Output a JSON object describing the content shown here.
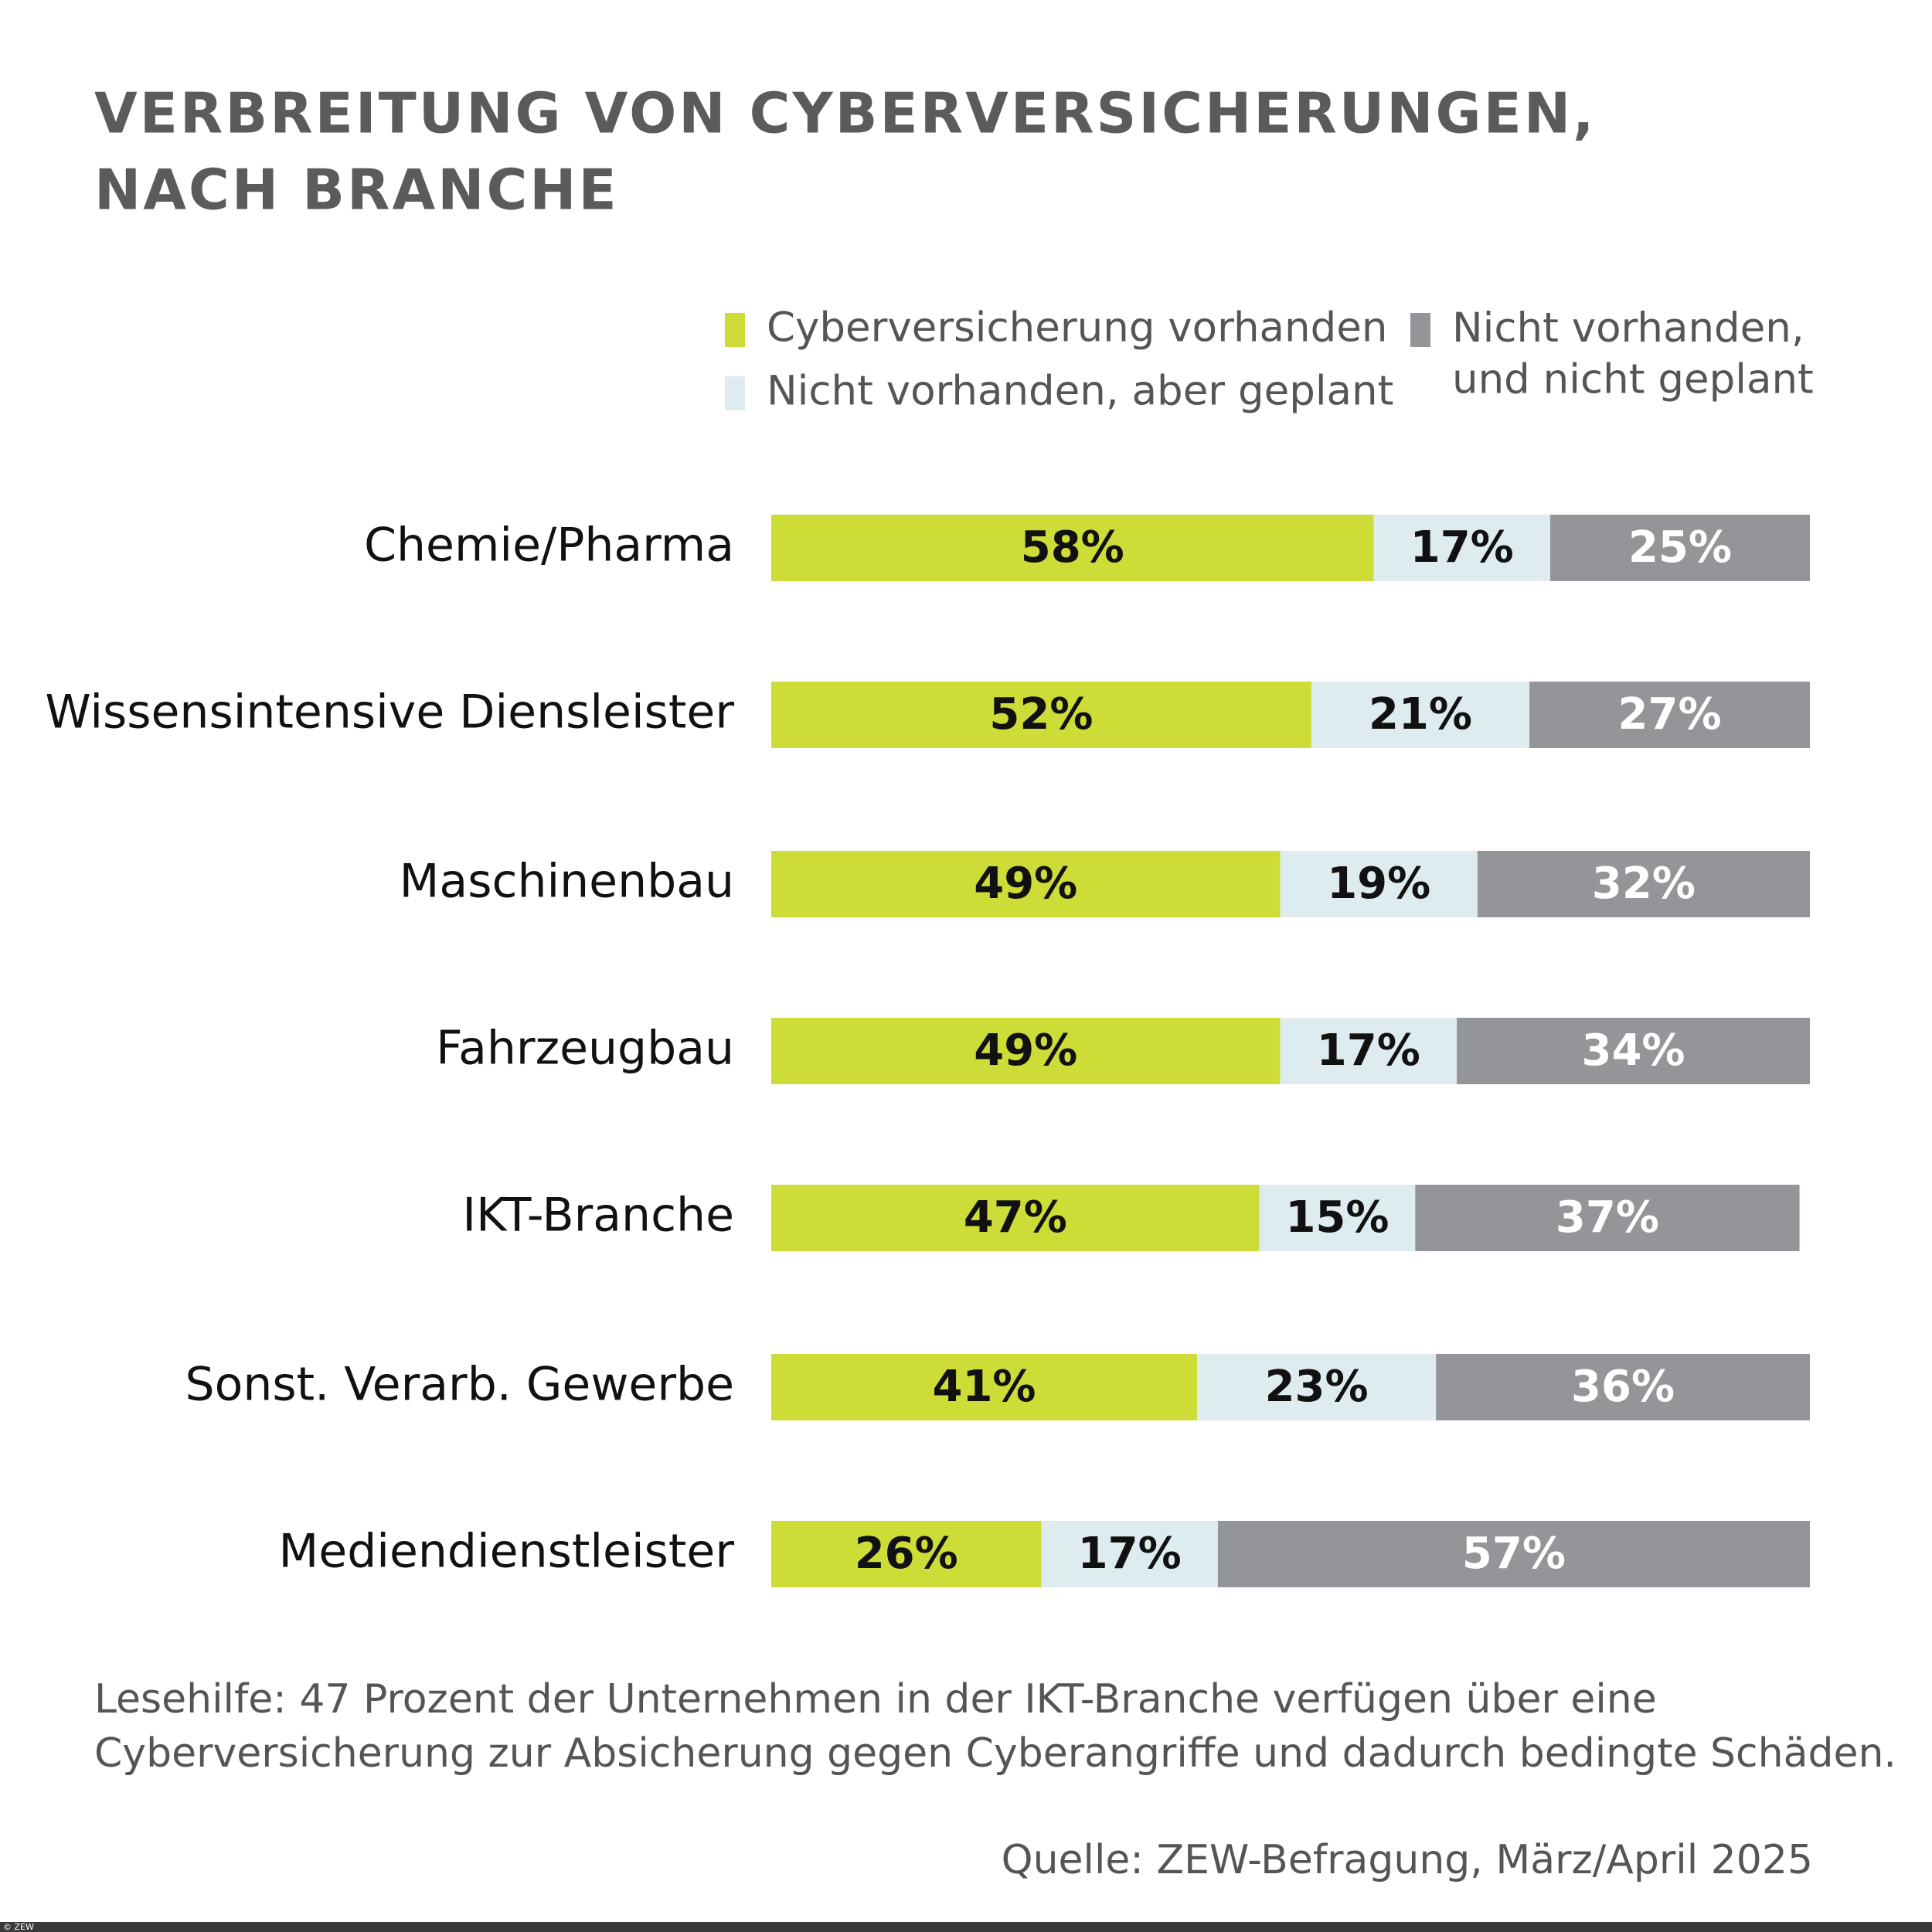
{
  "chart_data": {
    "type": "stacked_bar",
    "title": [
      "VERBREITUNG VON CYBERVERSICHERUNGEN,",
      "NACH BRANCHE"
    ],
    "categories": [
      "Chemie/Pharma",
      "Wissensintensive Diensleister",
      "Maschinenbau",
      "Fahrzeugbau",
      "IKT-Branche",
      "Sonst. Verarb. Gewerbe",
      "Mediendienstleister"
    ],
    "series": [
      {
        "name": "Cyberversicherung vorhanden",
        "color": "#cedc38",
        "label_color": "#111111",
        "values": [
          58,
          52,
          49,
          49,
          47,
          41,
          26
        ],
        "value_labels": [
          "58%",
          "52%",
          "49%",
          "49%",
          "47%",
          "41%",
          "26%"
        ]
      },
      {
        "name": "Nicht vorhanden, aber geplant",
        "color": "#deecef",
        "label_color": "#111111",
        "values": [
          17,
          21,
          19,
          17,
          15,
          23,
          17
        ],
        "value_labels": [
          "17%",
          "21%",
          "19%",
          "17%",
          "15%",
          "23%",
          "17%"
        ]
      },
      {
        "name": "Nicht vorhanden,\nund nicht geplant",
        "color": "#939598",
        "label_color": "#ffffff",
        "values": [
          25,
          27,
          32,
          34,
          37,
          36,
          57
        ],
        "value_labels": [
          "25%",
          "27%",
          "32%",
          "34%",
          "37%",
          "36%",
          "57%"
        ]
      }
    ],
    "xlim": [
      0,
      100
    ],
    "note": [
      "Lesehilfe: 47 Prozent der Unternehmen in der IKT-Branche verfügen über eine",
      "Cyberversicherung zur Absicherung gegen Cyberangriffe und dadurch bedingte Schäden."
    ],
    "source": "Quelle: ZEW-Befragung, März/April 2025",
    "copyright": "© ZEW"
  }
}
